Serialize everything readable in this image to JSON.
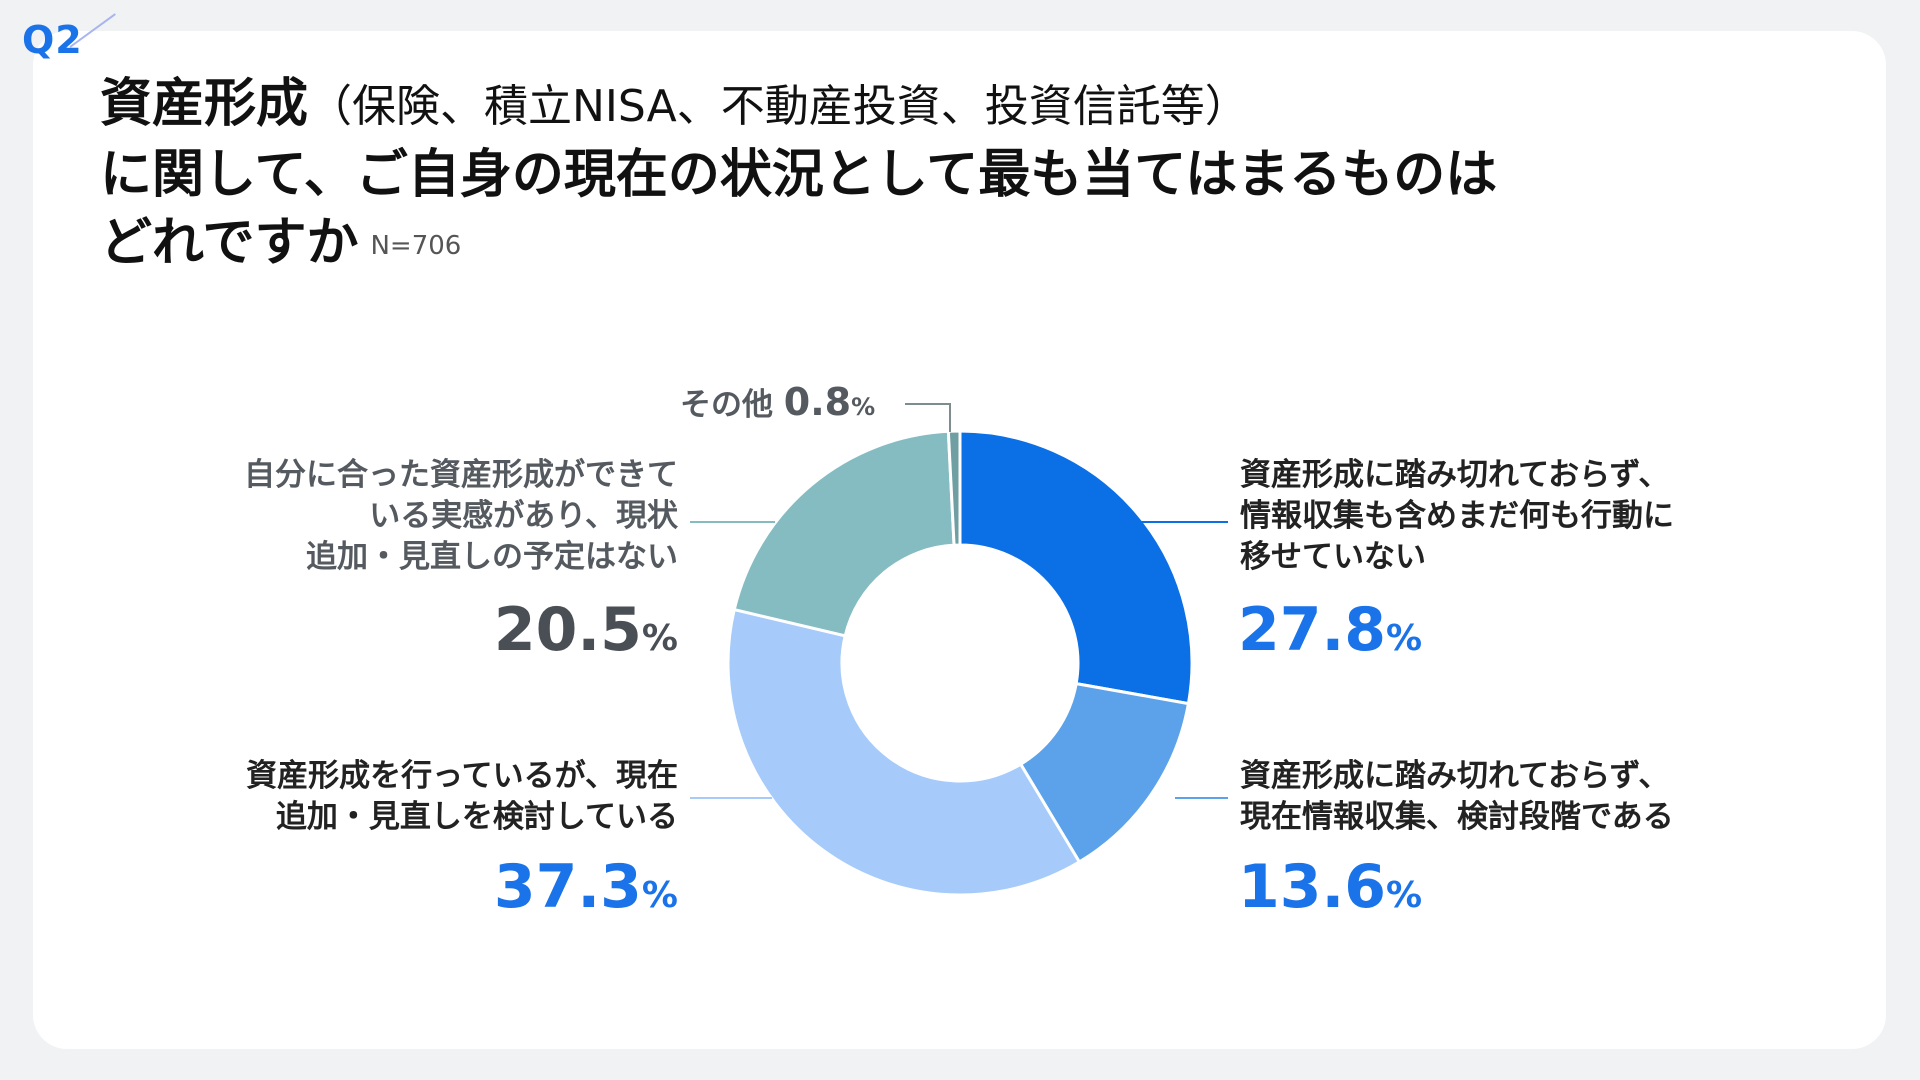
{
  "question_tag": "Q2",
  "title": {
    "main": "資産形成",
    "paren": "（保険、積立NISA、不動産投資、投資信託等）",
    "line2": "に関して、ご自身の現在の状況として最も当てはまるものは",
    "line3": "どれですか",
    "n": "N=706"
  },
  "colors": {
    "s1": "#0b6fe6",
    "s2": "#5ba2ea",
    "s3": "#a6cbfa",
    "s4": "#84bcc2",
    "s5": "#6f9ea3",
    "accent": "#1a73e8"
  },
  "chart_data": {
    "type": "pie",
    "style": "donut",
    "title": "資産形成に関して、ご自身の現在の状況として最も当てはまるものはどれですか",
    "n": 706,
    "categories": [
      "資産形成に踏み切れておらず、情報収集も含めまだ何も行動に移せていない",
      "資産形成に踏み切れておらず、現在情報収集、検討段階である",
      "資産形成を行っているが、現在追加・見直しを検討している",
      "自分に合った資産形成ができている実感があり、現状追加・見直しの予定はない",
      "その他"
    ],
    "values": [
      27.8,
      13.6,
      37.3,
      20.5,
      0.8
    ],
    "unit": "%"
  },
  "labels": {
    "s1": {
      "lines": [
        "資産形成に踏み切れておらず、",
        "情報収集も含めまだ何も行動に",
        "移せていない"
      ],
      "value": "27.8",
      "unit": "%"
    },
    "s2": {
      "lines": [
        "資産形成に踏み切れておらず、",
        "現在情報収集、検討段階である"
      ],
      "value": "13.6",
      "unit": "%"
    },
    "s3": {
      "lines": [
        "資産形成を行っているが、現在",
        "追加・見直しを検討している"
      ],
      "value": "37.3",
      "unit": "%"
    },
    "s4": {
      "lines": [
        "自分に合った資産形成ができて",
        "いる実感があり、現状",
        "追加・見直しの予定はない"
      ],
      "value": "20.5",
      "unit": "%"
    },
    "s5": {
      "name": "その他",
      "value": "0.8",
      "unit": "%"
    }
  }
}
